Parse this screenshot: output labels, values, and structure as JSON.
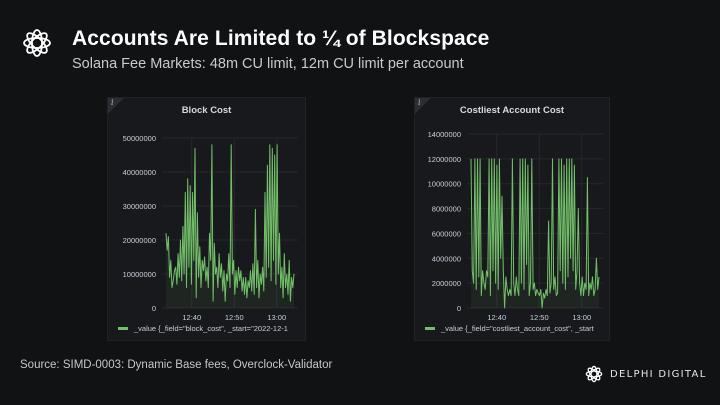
{
  "header": {
    "title": "Accounts Are Limited to ¼ of Blockspace",
    "subtitle": "Solana Fee Markets: 48m CU limit, 12m CU limit per account",
    "logo_icon": "delphi-flower-icon"
  },
  "footer": {
    "source": "Source: SIMD-0003: Dynamic Base fees, Overclock-Validator",
    "brand": "DELPHI DIGITAL"
  },
  "colors": {
    "background": "#111214",
    "panel": "#18191d",
    "series": "#73bf69",
    "grid": "#26282d",
    "axis_text": "#c7d0d9"
  },
  "chart_data": [
    {
      "type": "line",
      "title": "Block Cost",
      "info_icon": "i",
      "xlabel": "",
      "ylabel": "",
      "x_ticks": [
        "12:40",
        "12:50",
        "13:00"
      ],
      "x_range_minutes": [
        "12:33",
        "13:05"
      ],
      "y_ticks": [
        "0",
        "10000000",
        "20000000",
        "30000000",
        "40000000",
        "50000000"
      ],
      "ylim": [
        0,
        50000000
      ],
      "grid": true,
      "legend": "bottom",
      "series": [
        {
          "name": "_value {_field=\"block_cost\", _start=\"2022-12-1",
          "values": [
            22000000,
            17000000,
            21000000,
            9000000,
            14000000,
            6000000,
            8000000,
            11000000,
            12000000,
            7000000,
            16000000,
            9000000,
            20000000,
            8000000,
            24000000,
            10000000,
            34000000,
            6000000,
            38000000,
            12000000,
            36000000,
            7000000,
            34000000,
            14000000,
            47000000,
            3000000,
            28000000,
            9000000,
            18000000,
            6000000,
            14000000,
            11000000,
            15000000,
            8000000,
            12000000,
            6000000,
            22000000,
            14000000,
            48000000,
            2000000,
            19000000,
            10000000,
            12000000,
            6000000,
            16000000,
            9000000,
            13000000,
            5000000,
            11000000,
            2000000,
            10000000,
            8000000,
            16000000,
            6000000,
            48000000,
            10000000,
            14000000,
            4000000,
            11000000,
            6000000,
            12000000,
            8000000,
            11000000,
            5000000,
            9000000,
            4000000,
            9000000,
            3000000,
            8000000,
            6000000,
            11000000,
            5000000,
            13000000,
            4000000,
            29000000,
            6000000,
            14000000,
            3000000,
            10000000,
            7000000,
            12000000,
            5000000,
            34000000,
            9000000,
            42000000,
            12000000,
            48000000,
            8000000,
            47000000,
            14000000,
            45000000,
            7000000,
            48000000,
            10000000,
            22000000,
            6000000,
            12000000,
            3000000,
            16000000,
            6000000,
            10000000,
            4000000,
            14000000,
            2000000,
            9000000,
            6000000,
            10000000
          ]
        }
      ]
    },
    {
      "type": "line",
      "title": "Costliest Account Cost",
      "info_icon": "i",
      "xlabel": "",
      "ylabel": "",
      "x_ticks": [
        "12:40",
        "12:50",
        "13:00"
      ],
      "x_range_minutes": [
        "12:33",
        "13:05"
      ],
      "y_ticks": [
        "0",
        "2000000",
        "4000000",
        "6000000",
        "8000000",
        "10000000",
        "12000000",
        "14000000"
      ],
      "ylim": [
        0,
        14000000
      ],
      "grid": true,
      "legend": "bottom",
      "series": [
        {
          "name": "_value {_field=\"costliest_account_cost\", _start",
          "values": [
            12000000,
            3000000,
            2000000,
            12000000,
            1500000,
            12000000,
            2500000,
            12000000,
            1000000,
            3000000,
            2000000,
            1500000,
            3000000,
            2500000,
            12000000,
            1000000,
            12000000,
            3000000,
            12000000,
            2000000,
            11500000,
            1500000,
            12000000,
            4000000,
            9000000,
            3000000,
            0,
            2500000,
            1500000,
            1000000,
            1500000,
            1000000,
            12000000,
            2000000,
            1000000,
            2500000,
            1500000,
            1000000,
            12000000,
            2000000,
            12000000,
            1500000,
            12000000,
            3500000,
            11500000,
            1000000,
            2000000,
            12000000,
            1500000,
            2000000,
            1000000,
            1500000,
            1200000,
            1000000,
            1500000,
            0,
            1200000,
            800000,
            1500000,
            1000000,
            7000000,
            1200000,
            2000000,
            12000000,
            1500000,
            2500000,
            1000000,
            1200000,
            12000000,
            3000000,
            12000000,
            2000000,
            11500000,
            1500000,
            12000000,
            2500000,
            12000000,
            4000000,
            12000000,
            3000000,
            11500000,
            1500000,
            3000000,
            8000000,
            2000000,
            1000000,
            2500000,
            1000000,
            2000000,
            1500000,
            10500000,
            1000000,
            2000000,
            1500000,
            2500000,
            1000000,
            1500000,
            4000000,
            1500000,
            2500000
          ]
        }
      ]
    }
  ]
}
